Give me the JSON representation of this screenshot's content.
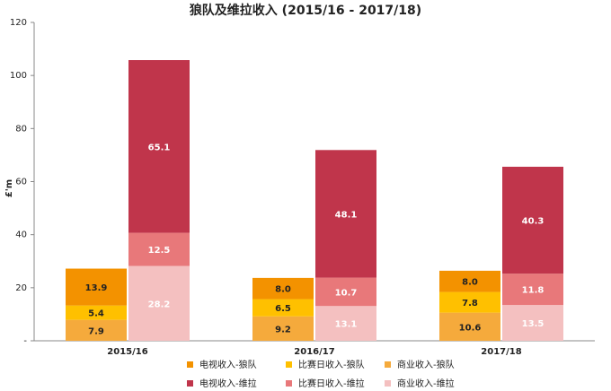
{
  "chart_data": {
    "type": "bar",
    "title": "狼队及维拉收入 (2015/16 - 2017/18)",
    "y_label": "£'m",
    "categories": [
      "2015/16",
      "2016/17",
      "2017/18"
    ],
    "ylim": [
      0,
      120
    ],
    "yticks": [
      {
        "value": 0,
        "label": "-"
      },
      20,
      40,
      60,
      80,
      100,
      120
    ],
    "series": [
      {
        "name": "电视收入-狼队",
        "color": "#f39200",
        "values": [
          13.9,
          8,
          8
        ],
        "value_labels": [
          "13.9",
          "8.0",
          "8.0"
        ]
      },
      {
        "name": "比赛日收入-狼队",
        "color": "#ffc000",
        "values": [
          5.4,
          6.5,
          7.8
        ],
        "value_labels": [
          "5.4",
          "6.5",
          "7.8"
        ]
      },
      {
        "name": "商业收入-狼队",
        "color": "#f5aa3c",
        "values": [
          7.9,
          9.2,
          10.6
        ],
        "value_labels": [
          "7.9",
          "9.2",
          "10.6"
        ]
      },
      {
        "name": "电视收入-维拉",
        "color": "#c0354b",
        "values": [
          65.1,
          48.1,
          40.3
        ],
        "value_labels": [
          "65.1",
          "48.1",
          "40.3"
        ]
      },
      {
        "name": "比赛日收入-维拉",
        "color": "#e8787a",
        "values": [
          12.5,
          10.7,
          11.8
        ],
        "value_labels": [
          "12.5",
          "10.7",
          "11.8"
        ]
      },
      {
        "name": "商业收入-维拉",
        "color": "#f4c0c0",
        "values": [
          28.2,
          13.1,
          13.5
        ],
        "value_labels": [
          "28.2",
          "13.1",
          "13.5"
        ]
      }
    ]
  }
}
